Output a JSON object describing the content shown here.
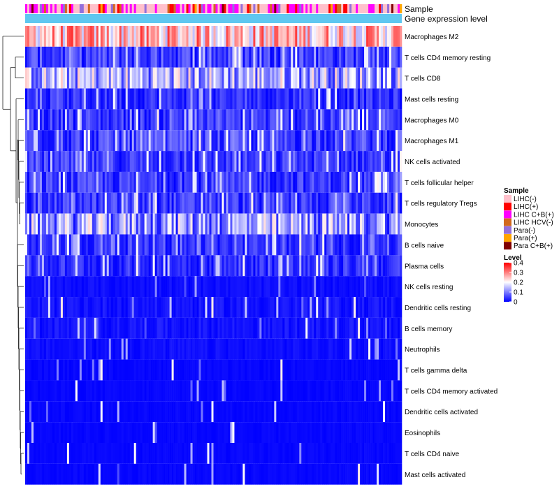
{
  "chart_data": {
    "type": "heatmap",
    "title": "",
    "annotations": [
      {
        "name": "Sample"
      },
      {
        "name": "Gene expression level"
      }
    ],
    "rows": [
      {
        "label": "Macrophages M2",
        "mean": 0.25
      },
      {
        "label": "T cells CD4 memory resting",
        "mean": 0.07
      },
      {
        "label": "T cells CD8",
        "mean": 0.14
      },
      {
        "label": "Mast cells resting",
        "mean": 0.05
      },
      {
        "label": "Macrophages M0",
        "mean": 0.06
      },
      {
        "label": "Macrophages M1",
        "mean": 0.07
      },
      {
        "label": "NK cells activated",
        "mean": 0.06
      },
      {
        "label": "T cells follicular helper",
        "mean": 0.06
      },
      {
        "label": "T cells regulatory  Tregs",
        "mean": 0.06
      },
      {
        "label": "Monocytes",
        "mean": 0.12
      },
      {
        "label": "B cells naive",
        "mean": 0.05
      },
      {
        "label": "Plasma cells",
        "mean": 0.05
      },
      {
        "label": "NK cells resting",
        "mean": 0.02
      },
      {
        "label": "Dendritic cells resting",
        "mean": 0.03
      },
      {
        "label": "B cells memory",
        "mean": 0.03
      },
      {
        "label": "Neutrophils",
        "mean": 0.02
      },
      {
        "label": "T cells gamma delta",
        "mean": 0.01
      },
      {
        "label": "T cells CD4 memory activated",
        "mean": 0.01
      },
      {
        "label": "Dendritic cells activated",
        "mean": 0.01
      },
      {
        "label": "Eosinophils",
        "mean": 0.01
      },
      {
        "label": "T cells CD4 naive",
        "mean": 0.01
      },
      {
        "label": "Mast cells activated",
        "mean": 0.01
      }
    ],
    "sample_legend": {
      "title": "Sample",
      "entries": [
        {
          "label": "LIHC(-)",
          "color": "#ffc0cb"
        },
        {
          "label": "LIHC(+)",
          "color": "#ff0000"
        },
        {
          "label": "LIHC C+B(+)",
          "color": "#ff00ff"
        },
        {
          "label": "LIHC HCV(-)",
          "color": "#d2691e"
        },
        {
          "label": "Para(-)",
          "color": "#9370db"
        },
        {
          "label": "Para(+)",
          "color": "#ffa500"
        },
        {
          "label": "Para C+B(+)",
          "color": "#800000"
        }
      ]
    },
    "level_legend": {
      "title": "Level",
      "ticks": [
        "0.4",
        "0.3",
        "0.2",
        "0.1",
        "0"
      ],
      "range": [
        0,
        0.4
      ],
      "colors": [
        "#0000ff",
        "#ffffff",
        "#ff0000"
      ]
    },
    "gene_expression_color": "#5fc7f0"
  }
}
